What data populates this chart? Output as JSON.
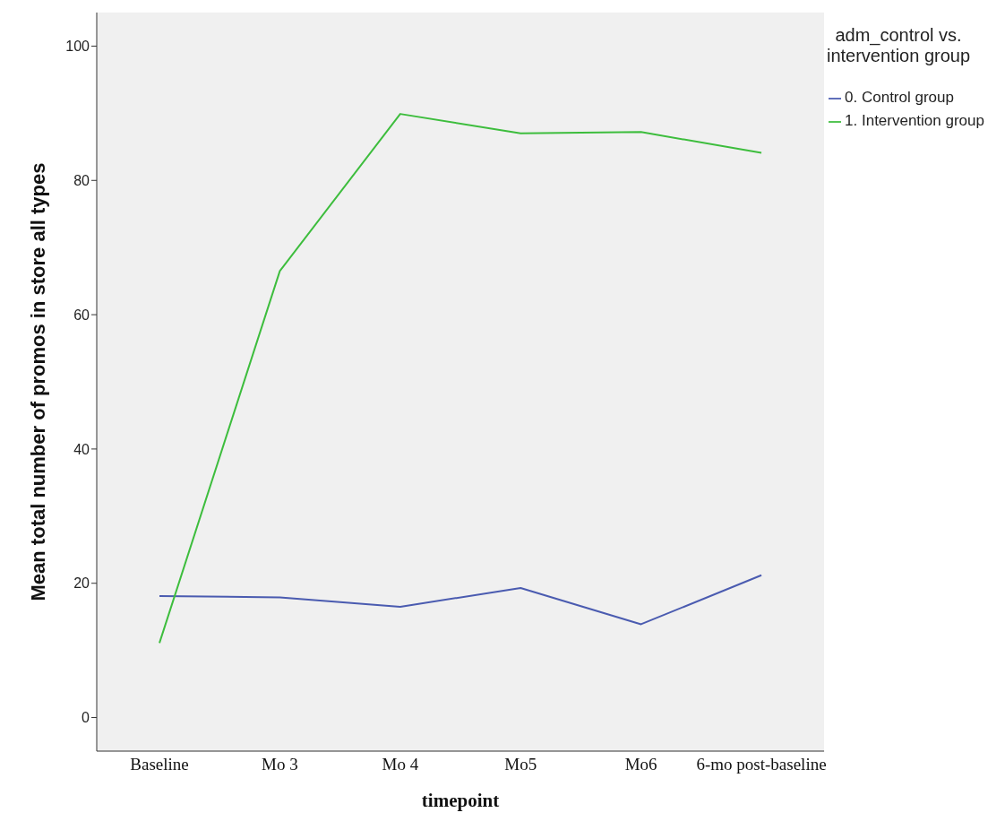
{
  "chart_data": {
    "type": "line",
    "xlabel": "timepoint",
    "ylabel": "Mean total number of promos in store all types",
    "legend_title": "adm_control vs. intervention group",
    "categories": [
      "Baseline",
      "Mo 3",
      "Mo 4",
      "Mo5",
      "Mo6",
      "6-mo post-baseline"
    ],
    "series": [
      {
        "name": "0. Control group",
        "color": "#4a5bb0",
        "values": [
          18.1,
          17.9,
          16.5,
          19.3,
          13.9,
          21.2
        ]
      },
      {
        "name": "1. Intervention group",
        "color": "#3dbd3d",
        "values": [
          11.1,
          66.5,
          89.9,
          87.0,
          87.2,
          84.1
        ]
      }
    ],
    "ylim": [
      -5,
      105
    ],
    "yticks": [
      0,
      20,
      40,
      60,
      80,
      100
    ],
    "legend": "top right",
    "marker": "none",
    "line_style": "solid"
  }
}
